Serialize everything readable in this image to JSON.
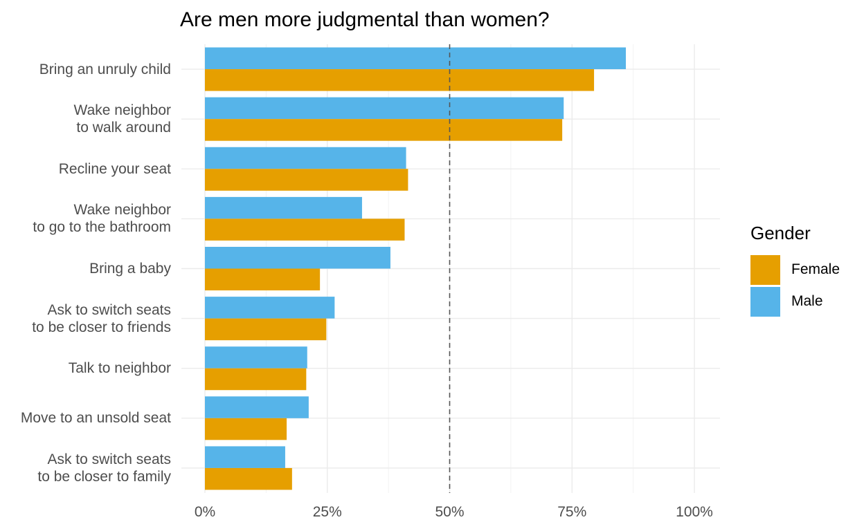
{
  "chart_data": {
    "type": "bar",
    "orientation": "horizontal",
    "title": "Are men more judgmental than women?",
    "xlabel": "",
    "ylabel": "",
    "xlim": [
      0,
      1.05
    ],
    "x_ticks": [
      "0%",
      "25%",
      "50%",
      "75%",
      "100%"
    ],
    "x_tick_values": [
      0,
      0.25,
      0.5,
      0.75,
      1.0
    ],
    "reference_line": {
      "x": 0.5,
      "style": "dashed"
    },
    "grid": true,
    "legend": {
      "title": "Gender",
      "placement": "right"
    },
    "categories": [
      "Bring an unruly child",
      "Wake neighbor\nto walk around",
      "Recline your seat",
      "Wake neighbor\nto go to the bathroom",
      "Bring a baby",
      "Ask to switch seats\nto be closer to friends",
      "Talk to neighbor",
      "Move to an unsold seat",
      "Ask to switch seats\nto be closer to family"
    ],
    "series": [
      {
        "name": "Female",
        "color": "#E69F00",
        "values": [
          0.795,
          0.73,
          0.415,
          0.408,
          0.235,
          0.248,
          0.207,
          0.167,
          0.178
        ]
      },
      {
        "name": "Male",
        "color": "#56B4E9",
        "values": [
          0.86,
          0.733,
          0.411,
          0.321,
          0.379,
          0.265,
          0.209,
          0.212,
          0.164
        ]
      }
    ]
  }
}
